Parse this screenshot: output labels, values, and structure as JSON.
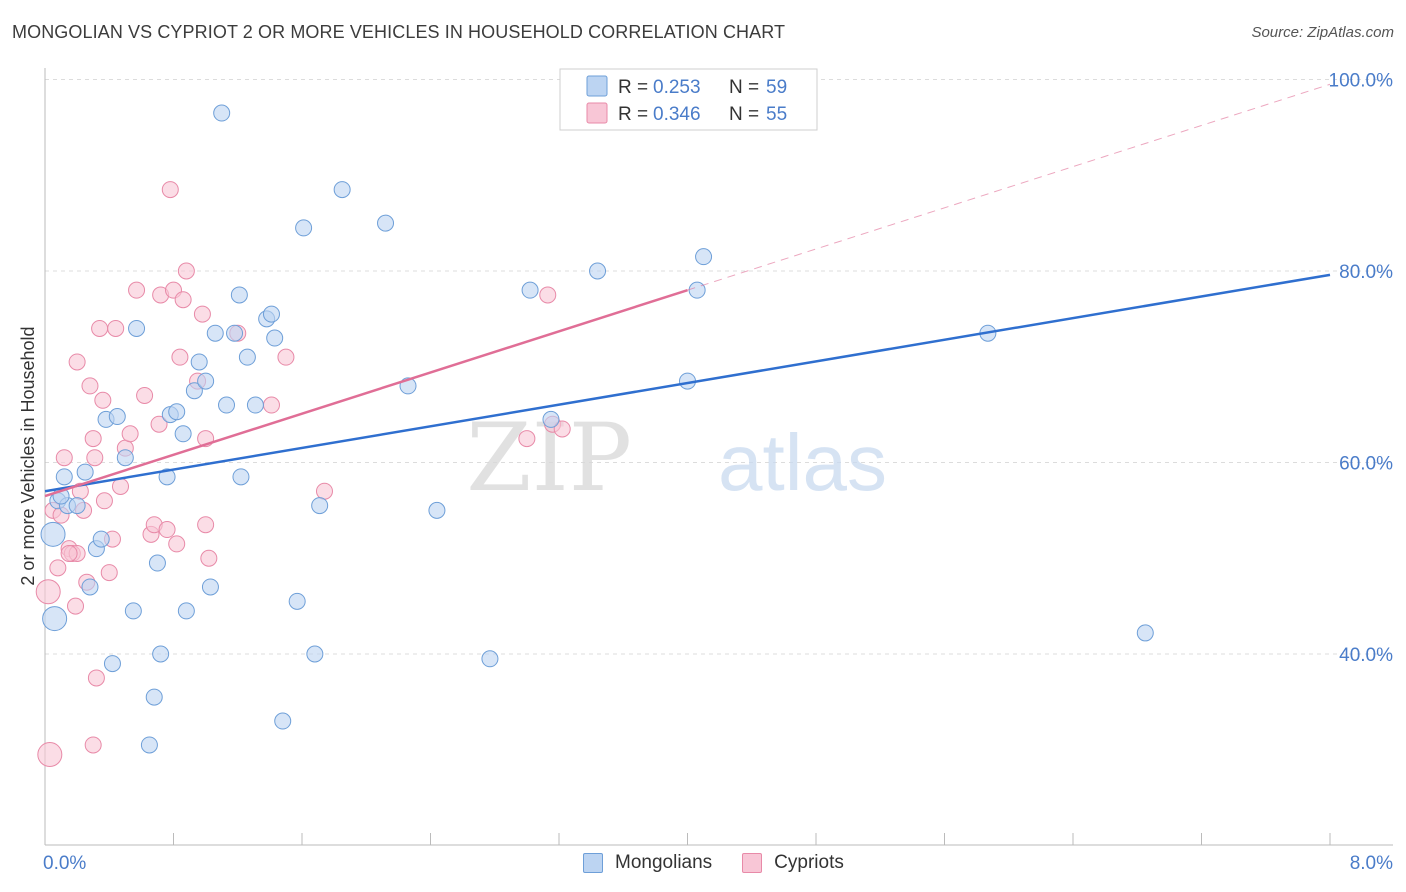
{
  "header": {
    "title": "MONGOLIAN VS CYPRIOT 2 OR MORE VEHICLES IN HOUSEHOLD CORRELATION CHART",
    "source": "Source: ZipAtlas.com"
  },
  "legend": {
    "r_label": "R =",
    "n_label": "N =",
    "entries": [
      {
        "r": "0.253",
        "n": "59"
      },
      {
        "r": "0.346",
        "n": "55"
      }
    ]
  },
  "bottom_legend": [
    "Mongolians",
    "Cypriots"
  ],
  "watermark": {
    "part1": "ZIP",
    "part2": "atlas"
  },
  "colors": {
    "blue_fill": "#bcd4f2",
    "blue_stroke": "#6e9fd8",
    "blue_line": "#2f6fcf",
    "pink_fill": "#f8c6d6",
    "pink_stroke": "#e88aa8",
    "pink_line": "#e06e96",
    "tick_label": "#4a7cc9",
    "grid": "#dcdcdc"
  },
  "chart_data": {
    "type": "scatter",
    "title": "MONGOLIAN VS CYPRIOT 2 OR MORE VEHICLES IN HOUSEHOLD CORRELATION CHART",
    "xlabel": "",
    "ylabel": "2 or more Vehicles in Household",
    "xlim": [
      0,
      8
    ],
    "ylim": [
      22,
      102
    ],
    "x_tick_labels": [
      {
        "value": 0,
        "label": "0.0%"
      },
      {
        "value": 8,
        "label": "8.0%"
      }
    ],
    "y_tick_labels": [
      {
        "value": 40,
        "label": "40.0%"
      },
      {
        "value": 60,
        "label": "60.0%"
      },
      {
        "value": 80,
        "label": "80.0%"
      },
      {
        "value": 100,
        "label": "100.0%"
      }
    ],
    "grid": true,
    "legend_position": "top-center",
    "series": [
      {
        "name": "Mongolians",
        "color": "#6e9fd8",
        "trend": {
          "x": [
            0,
            8
          ],
          "y": [
            57,
            79.6
          ]
        },
        "points": [
          [
            0.05,
            52.5
          ],
          [
            0.06,
            43.7
          ],
          [
            0.08,
            56
          ],
          [
            0.12,
            58.5
          ],
          [
            0.14,
            55.5
          ],
          [
            0.2,
            55.5
          ],
          [
            0.25,
            59
          ],
          [
            0.28,
            47
          ],
          [
            0.32,
            51
          ],
          [
            0.35,
            52
          ],
          [
            0.38,
            64.5
          ],
          [
            0.42,
            39
          ],
          [
            0.45,
            64.8
          ],
          [
            0.5,
            60.5
          ],
          [
            0.55,
            44.5
          ],
          [
            0.57,
            74
          ],
          [
            0.65,
            30.5
          ],
          [
            0.68,
            35.5
          ],
          [
            0.7,
            49.5
          ],
          [
            0.72,
            40
          ],
          [
            0.76,
            58.5
          ],
          [
            0.78,
            65
          ],
          [
            0.82,
            65.3
          ],
          [
            0.86,
            63
          ],
          [
            0.88,
            44.5
          ],
          [
            0.93,
            67.5
          ],
          [
            0.96,
            70.5
          ],
          [
            1.0,
            68.5
          ],
          [
            1.03,
            47
          ],
          [
            1.06,
            73.5
          ],
          [
            1.1,
            96.5
          ],
          [
            1.13,
            66
          ],
          [
            1.18,
            73.5
          ],
          [
            1.21,
            77.5
          ],
          [
            1.22,
            58.5
          ],
          [
            1.26,
            71
          ],
          [
            1.31,
            66
          ],
          [
            1.38,
            75
          ],
          [
            1.41,
            75.5
          ],
          [
            1.43,
            73
          ],
          [
            1.48,
            33
          ],
          [
            1.57,
            45.5
          ],
          [
            1.61,
            84.5
          ],
          [
            1.68,
            40
          ],
          [
            1.71,
            55.5
          ],
          [
            1.85,
            88.5
          ],
          [
            2.12,
            85
          ],
          [
            2.26,
            68
          ],
          [
            2.44,
            55
          ],
          [
            2.77,
            39.5
          ],
          [
            3.02,
            78
          ],
          [
            3.15,
            64.5
          ],
          [
            3.44,
            80
          ],
          [
            4.0,
            68.5
          ],
          [
            4.06,
            78
          ],
          [
            4.1,
            81.5
          ],
          [
            5.87,
            73.5
          ],
          [
            6.85,
            42.2
          ],
          [
            0.1,
            56.5
          ]
        ]
      },
      {
        "name": "Cypriots",
        "color": "#e88aa8",
        "trend": {
          "x": [
            0,
            4.0
          ],
          "y": [
            56.5,
            78
          ]
        },
        "points": [
          [
            0.02,
            46.5
          ],
          [
            0.03,
            29.5
          ],
          [
            0.05,
            55
          ],
          [
            0.08,
            49
          ],
          [
            0.1,
            54.5
          ],
          [
            0.12,
            60.5
          ],
          [
            0.15,
            51
          ],
          [
            0.17,
            50.5
          ],
          [
            0.19,
            45
          ],
          [
            0.2,
            50.5
          ],
          [
            0.2,
            70.5
          ],
          [
            0.22,
            57
          ],
          [
            0.24,
            55
          ],
          [
            0.26,
            47.5
          ],
          [
            0.28,
            68
          ],
          [
            0.3,
            62.5
          ],
          [
            0.3,
            30.5
          ],
          [
            0.31,
            60.5
          ],
          [
            0.32,
            37.5
          ],
          [
            0.34,
            74
          ],
          [
            0.36,
            66.5
          ],
          [
            0.37,
            56
          ],
          [
            0.4,
            48.5
          ],
          [
            0.42,
            52
          ],
          [
            0.44,
            74
          ],
          [
            0.47,
            57.5
          ],
          [
            0.5,
            61.5
          ],
          [
            0.53,
            63
          ],
          [
            0.57,
            78
          ],
          [
            0.62,
            67
          ],
          [
            0.66,
            52.5
          ],
          [
            0.68,
            53.5
          ],
          [
            0.71,
            64
          ],
          [
            0.72,
            77.5
          ],
          [
            0.76,
            53
          ],
          [
            0.78,
            88.5
          ],
          [
            0.8,
            78
          ],
          [
            0.82,
            51.5
          ],
          [
            0.84,
            71
          ],
          [
            0.86,
            77
          ],
          [
            0.88,
            80
          ],
          [
            0.95,
            68.5
          ],
          [
            0.98,
            75.5
          ],
          [
            1.0,
            62.5
          ],
          [
            1.0,
            53.5
          ],
          [
            1.02,
            50
          ],
          [
            1.2,
            73.5
          ],
          [
            1.41,
            66
          ],
          [
            1.5,
            71
          ],
          [
            1.74,
            57
          ],
          [
            3.0,
            62.5
          ],
          [
            3.13,
            77.5
          ],
          [
            3.16,
            64
          ],
          [
            3.22,
            63.5
          ],
          [
            0.15,
            50.5
          ]
        ]
      }
    ]
  }
}
